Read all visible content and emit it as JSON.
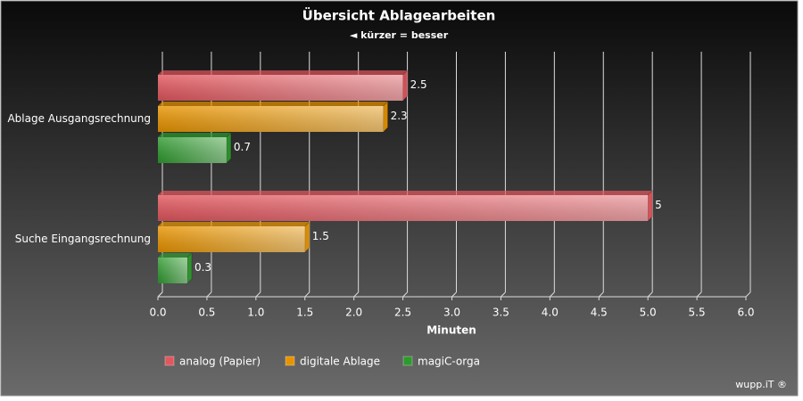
{
  "chart_data": {
    "type": "bar",
    "orientation": "horizontal",
    "title": "Übersicht Ablagearbeiten",
    "subtitle": "◄ kürzer = besser",
    "x_label": "Minuten",
    "credit": "wupp.iT ®",
    "categories": [
      "Ablage Ausgangsrechnung",
      "Suche Eingangsrechnung"
    ],
    "series": [
      {
        "name": "analog (Papier)",
        "color": "#e2575e",
        "values": [
          2.5,
          5
        ]
      },
      {
        "name": "digitale Ablage",
        "color": "#e89400",
        "values": [
          2.3,
          1.5
        ]
      },
      {
        "name": "magiC-orga",
        "color": "#2e9a2e",
        "values": [
          0.7,
          0.3
        ]
      }
    ],
    "xlim": [
      0,
      6
    ],
    "xticks": [
      {
        "value": 0,
        "label": "0.0"
      },
      0.5,
      {
        "value": 1,
        "label": "1.0"
      },
      1.5,
      {
        "value": 2,
        "label": "2.0"
      },
      2.5,
      {
        "value": 3,
        "label": "3.0"
      },
      3.5,
      {
        "value": 4,
        "label": "4.0"
      },
      4.5,
      {
        "value": 5,
        "label": "5.0"
      },
      5.5,
      {
        "value": 6,
        "label": "6.0"
      }
    ],
    "grid": true,
    "legend": "bottom"
  }
}
